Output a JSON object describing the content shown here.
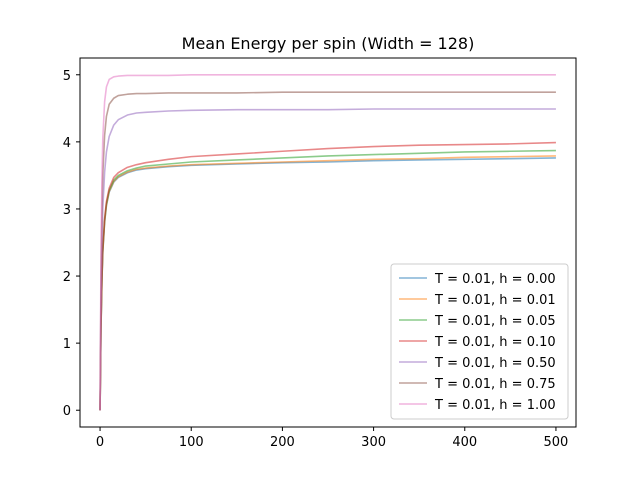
{
  "chart_data": {
    "type": "line",
    "title": "Mean Energy per spin (Width = 128)",
    "xlabel": "",
    "ylabel": "",
    "xlim": [
      -22,
      522
    ],
    "ylim": [
      -0.25,
      5.25
    ],
    "xticks": [
      0,
      100,
      200,
      300,
      400,
      500
    ],
    "yticks": [
      0,
      1,
      2,
      3,
      4,
      5
    ],
    "grid": false,
    "legend_position": "lower right",
    "x": [
      0,
      1,
      2,
      3,
      5,
      7,
      10,
      15,
      20,
      30,
      40,
      50,
      75,
      100,
      150,
      200,
      250,
      300,
      350,
      400,
      450,
      500
    ],
    "series": [
      {
        "name": "T = 0.01, h = 0.00",
        "color": "#1f77b4",
        "values": [
          0.0,
          1.2,
          1.9,
          2.35,
          2.8,
          3.05,
          3.25,
          3.4,
          3.47,
          3.54,
          3.58,
          3.6,
          3.63,
          3.65,
          3.67,
          3.69,
          3.7,
          3.72,
          3.73,
          3.74,
          3.75,
          3.76
        ]
      },
      {
        "name": "T = 0.01, h = 0.01",
        "color": "#ff7f0e",
        "values": [
          0.0,
          1.2,
          1.9,
          2.36,
          2.81,
          3.06,
          3.26,
          3.41,
          3.48,
          3.55,
          3.59,
          3.61,
          3.64,
          3.66,
          3.68,
          3.7,
          3.72,
          3.74,
          3.75,
          3.77,
          3.78,
          3.79
        ]
      },
      {
        "name": "T = 0.01, h = 0.05",
        "color": "#2ca02c",
        "values": [
          0.0,
          1.22,
          1.92,
          2.38,
          2.83,
          3.08,
          3.28,
          3.43,
          3.5,
          3.57,
          3.61,
          3.64,
          3.67,
          3.7,
          3.73,
          3.76,
          3.79,
          3.81,
          3.83,
          3.85,
          3.86,
          3.87
        ]
      },
      {
        "name": "T = 0.01, h = 0.10",
        "color": "#d62728",
        "values": [
          0.0,
          1.25,
          1.95,
          2.41,
          2.86,
          3.11,
          3.31,
          3.47,
          3.54,
          3.62,
          3.66,
          3.69,
          3.74,
          3.78,
          3.82,
          3.86,
          3.9,
          3.93,
          3.95,
          3.96,
          3.97,
          3.99
        ]
      },
      {
        "name": "T = 0.01, h = 0.50",
        "color": "#9467bd",
        "values": [
          0.0,
          1.6,
          2.45,
          3.0,
          3.55,
          3.85,
          4.08,
          4.25,
          4.33,
          4.4,
          4.43,
          4.44,
          4.46,
          4.47,
          4.48,
          4.48,
          4.48,
          4.49,
          4.49,
          4.49,
          4.49,
          4.49
        ]
      },
      {
        "name": "T = 0.01, h = 0.75",
        "color": "#8c564b",
        "values": [
          0.0,
          1.9,
          2.9,
          3.5,
          4.1,
          4.38,
          4.56,
          4.65,
          4.69,
          4.71,
          4.72,
          4.72,
          4.73,
          4.73,
          4.73,
          4.74,
          4.74,
          4.74,
          4.74,
          4.74,
          4.74,
          4.74
        ]
      },
      {
        "name": "T = 0.01, h = 1.00",
        "color": "#e377c2",
        "values": [
          0.0,
          2.3,
          3.4,
          4.05,
          4.6,
          4.82,
          4.93,
          4.97,
          4.98,
          4.99,
          4.99,
          4.99,
          4.99,
          5.0,
          5.0,
          5.0,
          5.0,
          5.0,
          5.0,
          5.0,
          5.0,
          5.0
        ]
      }
    ]
  }
}
